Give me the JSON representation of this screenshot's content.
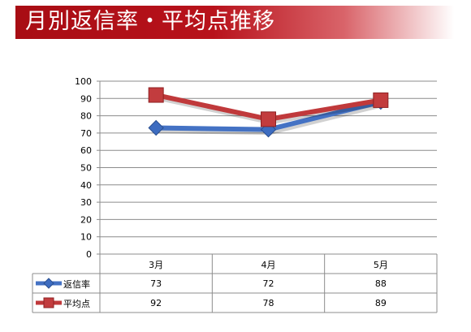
{
  "title": "月別返信率・平均点推移",
  "chart_data": {
    "type": "line",
    "categories": [
      "3月",
      "4月",
      "5月"
    ],
    "ylim": [
      0,
      100
    ],
    "yticks": [
      0,
      10,
      20,
      30,
      40,
      50,
      60,
      70,
      80,
      90,
      100
    ],
    "grid": true,
    "series": [
      {
        "name": "返信率",
        "values": [
          73,
          72,
          88
        ],
        "color": "#4472c4",
        "marker": "diamond"
      },
      {
        "name": "平均点",
        "values": [
          92,
          78,
          89
        ],
        "color": "#c0393b",
        "marker": "square"
      }
    ],
    "data_table": true
  }
}
